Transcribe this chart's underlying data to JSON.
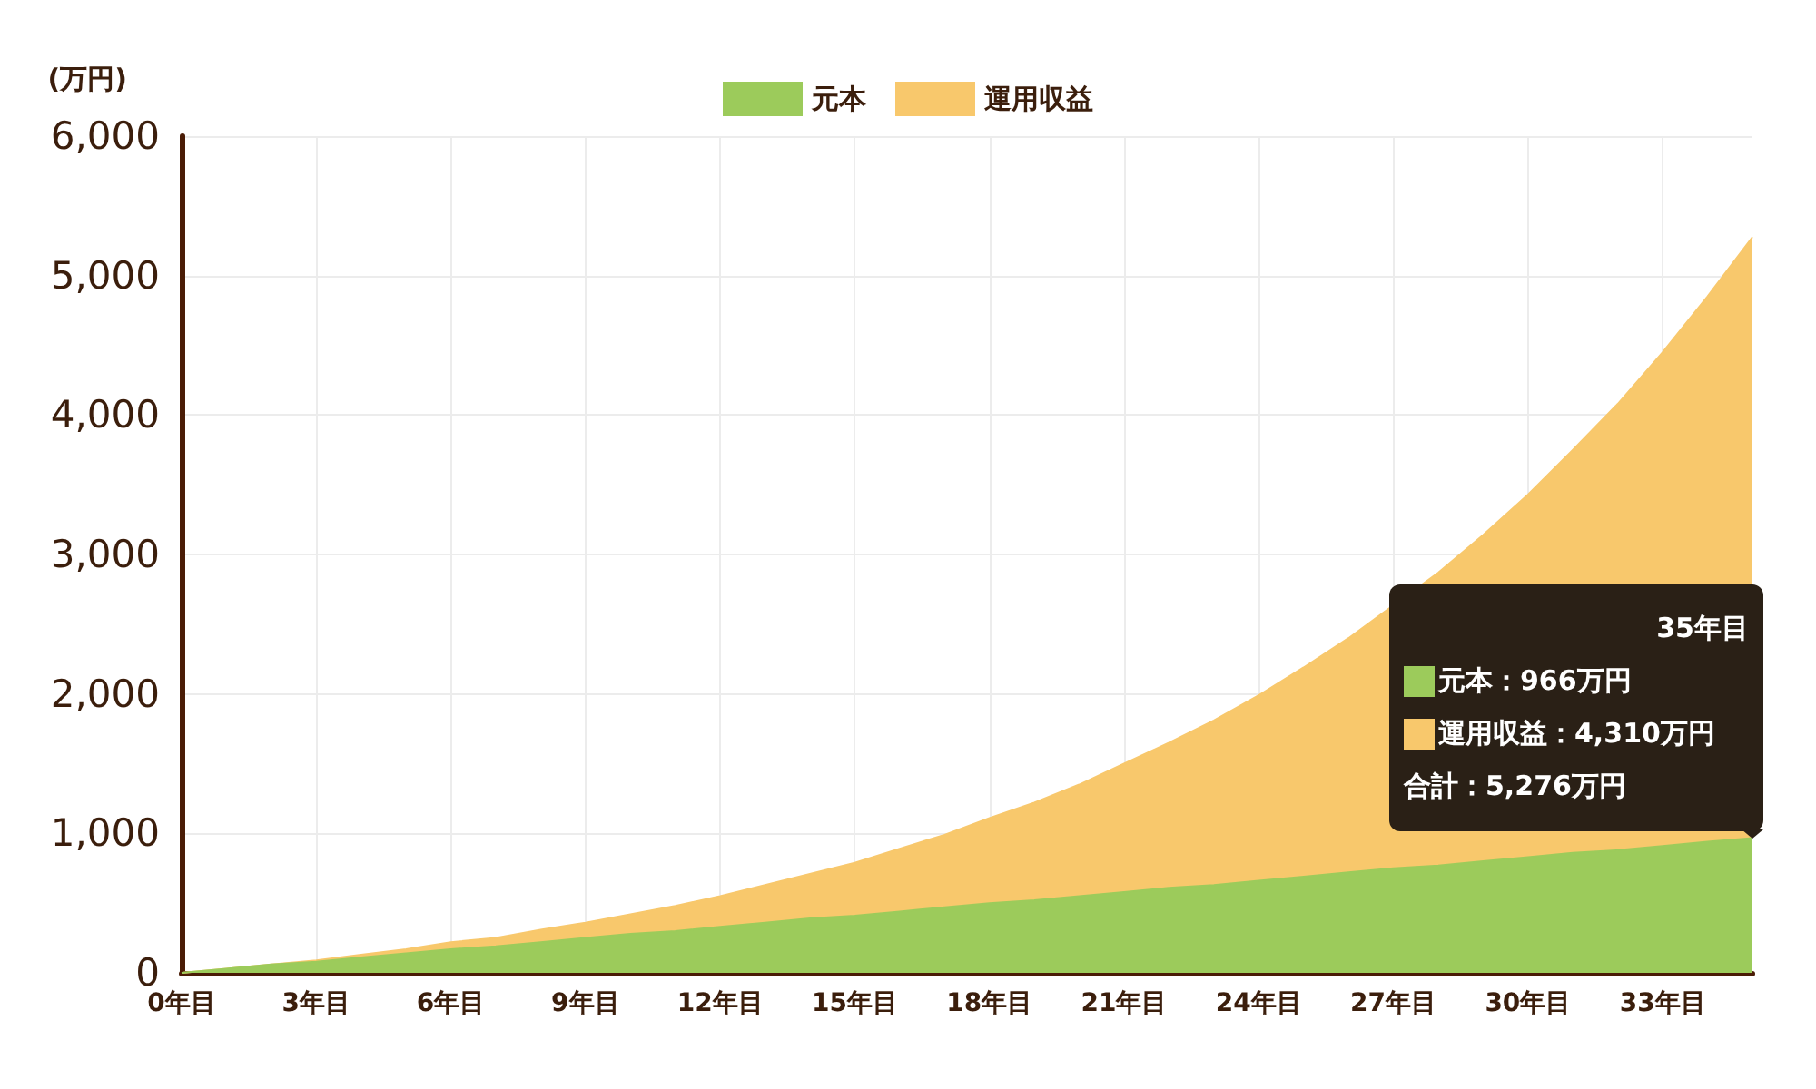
{
  "chart_data": {
    "type": "area",
    "stacked": true,
    "ylabel": "(万円)",
    "legend": "top",
    "grid": true,
    "x": [
      0,
      1,
      2,
      3,
      4,
      5,
      6,
      7,
      8,
      9,
      10,
      11,
      12,
      13,
      14,
      15,
      16,
      17,
      18,
      19,
      20,
      21,
      22,
      23,
      24,
      25,
      26,
      27,
      28,
      29,
      30,
      31,
      32,
      33,
      34,
      35
    ],
    "series": [
      {
        "name": "元本",
        "color": "#9ccb5b",
        "values": [
          0,
          30,
          60,
          80,
          110,
          140,
          170,
          190,
          220,
          250,
          280,
          300,
          330,
          360,
          390,
          410,
          440,
          470,
          500,
          520,
          550,
          580,
          610,
          630,
          660,
          690,
          720,
          750,
          770,
          800,
          830,
          860,
          880,
          910,
          940,
          966
        ]
      },
      {
        "name": "運用収益",
        "color": "#f8c86c",
        "values": [
          0,
          0,
          0,
          10,
          20,
          30,
          50,
          60,
          90,
          110,
          140,
          180,
          220,
          270,
          320,
          380,
          450,
          520,
          610,
          700,
          800,
          920,
          1040,
          1180,
          1330,
          1500,
          1680,
          null,
          2100,
          2340,
          2600,
          2890,
          3200,
          3540,
          3910,
          4310
        ]
      }
    ],
    "xlim": [
      0,
      35
    ],
    "xticks": [
      {
        "value": 0,
        "label": "0年目"
      },
      {
        "value": 3,
        "label": "3年目"
      },
      {
        "value": 6,
        "label": "6年目"
      },
      {
        "value": 9,
        "label": "9年目"
      },
      {
        "value": 12,
        "label": "12年目"
      },
      {
        "value": 15,
        "label": "15年目"
      },
      {
        "value": 18,
        "label": "18年目"
      },
      {
        "value": 21,
        "label": "21年目"
      },
      {
        "value": 24,
        "label": "24年目"
      },
      {
        "value": 27,
        "label": "27年目"
      },
      {
        "value": 30,
        "label": "30年目"
      },
      {
        "value": 33,
        "label": "33年目"
      }
    ],
    "ylim": [
      0,
      6000
    ],
    "yticks": [
      0,
      {
        "value": 1000,
        "label": "1,000"
      },
      {
        "value": 2000,
        "label": "2,000"
      },
      {
        "value": 3000,
        "label": "3,000"
      },
      {
        "value": 4000,
        "label": "4,000"
      },
      {
        "value": 5000,
        "label": "5,000"
      },
      {
        "value": 6000,
        "label": "6,000"
      }
    ],
    "annotations": [
      "35年目",
      "元本：966万円",
      "運用収益：4,310万円",
      "合計：5,276万円"
    ]
  }
}
